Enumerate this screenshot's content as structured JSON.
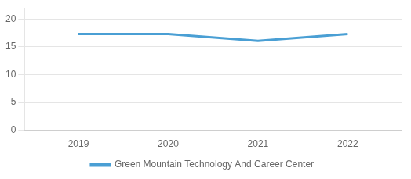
{
  "chart_data": {
    "type": "line",
    "x": [
      2019,
      2020,
      2021,
      2022
    ],
    "series": [
      {
        "name": "Green Mountain Technology And Career Center",
        "color": "#4a9fd4",
        "values": [
          17.3,
          17.3,
          16.1,
          17.3
        ],
        "line_style": "solid",
        "marker": "none"
      }
    ],
    "xlim": [
      2018.4,
      2022.6
    ],
    "xticks": [
      2019,
      2020,
      2021,
      2022
    ],
    "ylim": [
      0,
      22
    ],
    "yticks": [
      0,
      5,
      10,
      15,
      20
    ],
    "grid": "y",
    "legend": "bottom"
  }
}
